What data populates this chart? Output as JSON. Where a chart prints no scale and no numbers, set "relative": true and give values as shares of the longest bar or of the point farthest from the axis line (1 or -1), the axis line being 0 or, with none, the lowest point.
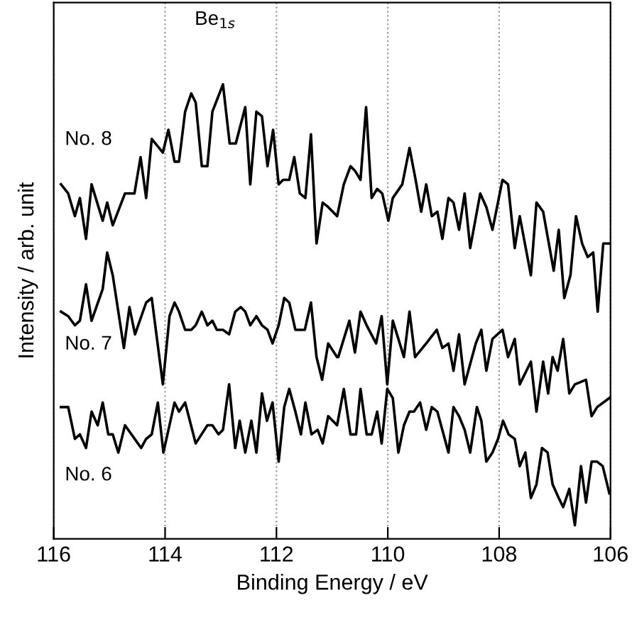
{
  "chart_data": {
    "type": "line",
    "xlabel": "Binding Energy / eV",
    "ylabel": "Intensity / arb. unit",
    "relative": true,
    "xlim": [
      116,
      106
    ],
    "xticks": [
      116,
      114,
      112,
      110,
      108,
      106
    ],
    "grid": "x",
    "legend": false,
    "marker": "none",
    "line_style": "solid",
    "annotations": [
      "Be$_{1s}$"
    ],
    "series": [
      {
        "name": "No. 8",
        "color": "#000000",
        "x": [
          115.87,
          115.74,
          115.62,
          115.53,
          115.42,
          115.32,
          115.12,
          115.04,
          114.94,
          114.72,
          114.55,
          114.44,
          114.34,
          114.24,
          114.04,
          113.94,
          113.83,
          113.75,
          113.64,
          113.53,
          113.45,
          113.34,
          113.24,
          113.15,
          112.96,
          112.84,
          112.73,
          112.56,
          112.47,
          112.36,
          112.26,
          112.16,
          112.06,
          111.96,
          111.88,
          111.77,
          111.68,
          111.58,
          111.48,
          111.38,
          111.28,
          111.17,
          111.07,
          110.91,
          110.79,
          110.67,
          110.59,
          110.49,
          110.39,
          110.29,
          110.19,
          110.1,
          109.99,
          109.91,
          109.74,
          109.61,
          109.5,
          109.4,
          109.31,
          109.21,
          109.11,
          109.02,
          108.91,
          108.82,
          108.72,
          108.62,
          108.52,
          108.34,
          108.23,
          108.12,
          107.94,
          107.84,
          107.72,
          107.63,
          107.43,
          107.33,
          107.21,
          107.02,
          106.93,
          106.83,
          106.72,
          106.62,
          106.51,
          106.41,
          106.31,
          106.23,
          106.13,
          106.02
        ],
        "values": [
          0.78,
          0.76,
          0.71,
          0.75,
          0.66,
          0.78,
          0.7,
          0.74,
          0.69,
          0.76,
          0.76,
          0.84,
          0.75,
          0.88,
          0.85,
          0.9,
          0.83,
          0.83,
          0.94,
          0.98,
          0.96,
          0.82,
          0.82,
          0.94,
          1.0,
          0.87,
          0.87,
          0.95,
          0.78,
          0.94,
          0.93,
          0.82,
          0.9,
          0.78,
          0.79,
          0.79,
          0.84,
          0.76,
          0.75,
          0.89,
          0.65,
          0.74,
          0.73,
          0.71,
          0.78,
          0.82,
          0.81,
          0.79,
          0.95,
          0.75,
          0.77,
          0.76,
          0.7,
          0.75,
          0.78,
          0.86,
          0.79,
          0.72,
          0.78,
          0.71,
          0.72,
          0.66,
          0.75,
          0.74,
          0.68,
          0.76,
          0.64,
          0.76,
          0.73,
          0.68,
          0.79,
          0.78,
          0.64,
          0.71,
          0.58,
          0.74,
          0.72,
          0.59,
          0.68,
          0.53,
          0.58,
          0.71,
          0.65,
          0.62,
          0.63,
          0.5,
          0.65,
          0.65
        ]
      },
      {
        "name": "No. 7",
        "color": "#000000",
        "x": [
          115.87,
          115.74,
          115.62,
          115.53,
          115.42,
          115.32,
          115.12,
          115.04,
          114.94,
          114.74,
          114.64,
          114.54,
          114.34,
          114.24,
          114.04,
          113.92,
          113.83,
          113.75,
          113.64,
          113.53,
          113.45,
          113.34,
          113.24,
          113.15,
          113.07,
          112.96,
          112.85,
          112.74,
          112.64,
          112.56,
          112.47,
          112.36,
          112.26,
          112.16,
          112.07,
          111.96,
          111.86,
          111.77,
          111.66,
          111.49,
          111.38,
          111.28,
          111.18,
          111.07,
          110.91,
          110.89,
          110.69,
          110.59,
          110.49,
          110.38,
          110.21,
          110.11,
          110.01,
          109.91,
          109.71,
          109.61,
          109.51,
          109.31,
          109.12,
          109.02,
          108.91,
          108.82,
          108.72,
          108.62,
          108.42,
          108.32,
          108.23,
          108.12,
          107.94,
          107.84,
          107.72,
          107.63,
          107.43,
          107.33,
          107.21,
          107.12,
          107.04,
          106.95,
          106.85,
          106.74,
          106.64,
          106.44,
          106.34,
          106.24,
          106.02
        ],
        "values": [
          0.5,
          0.49,
          0.47,
          0.48,
          0.56,
          0.48,
          0.55,
          0.63,
          0.58,
          0.42,
          0.51,
          0.45,
          0.52,
          0.53,
          0.34,
          0.49,
          0.52,
          0.5,
          0.46,
          0.46,
          0.47,
          0.5,
          0.47,
          0.48,
          0.46,
          0.46,
          0.45,
          0.5,
          0.51,
          0.5,
          0.47,
          0.49,
          0.47,
          0.46,
          0.43,
          0.47,
          0.53,
          0.52,
          0.46,
          0.46,
          0.52,
          0.4,
          0.35,
          0.43,
          0.4,
          0.4,
          0.48,
          0.41,
          0.5,
          0.47,
          0.43,
          0.49,
          0.34,
          0.48,
          0.4,
          0.5,
          0.4,
          0.43,
          0.46,
          0.42,
          0.43,
          0.37,
          0.45,
          0.34,
          0.43,
          0.46,
          0.37,
          0.44,
          0.46,
          0.4,
          0.44,
          0.34,
          0.39,
          0.28,
          0.39,
          0.32,
          0.4,
          0.37,
          0.44,
          0.32,
          0.34,
          0.35,
          0.27,
          0.29,
          0.31
        ]
      },
      {
        "name": "No. 6",
        "color": "#000000",
        "x": [
          115.87,
          115.74,
          115.62,
          115.53,
          115.42,
          115.32,
          115.21,
          115.12,
          115.02,
          114.94,
          114.84,
          114.72,
          114.43,
          114.34,
          114.24,
          114.13,
          114.03,
          113.83,
          113.75,
          113.64,
          113.45,
          113.24,
          113.15,
          113.04,
          112.96,
          112.85,
          112.74,
          112.66,
          112.56,
          112.45,
          112.36,
          112.26,
          112.17,
          112.07,
          111.96,
          111.86,
          111.77,
          111.66,
          111.56,
          111.48,
          111.37,
          111.26,
          111.17,
          111.07,
          110.91,
          110.79,
          110.67,
          110.57,
          110.49,
          110.38,
          110.29,
          110.19,
          110.11,
          110.01,
          109.91,
          109.81,
          109.71,
          109.61,
          109.53,
          109.42,
          109.31,
          109.21,
          109.11,
          108.91,
          108.82,
          108.72,
          108.62,
          108.52,
          108.4,
          108.32,
          108.23,
          108.12,
          108.02,
          107.93,
          107.83,
          107.72,
          107.63,
          107.53,
          107.43,
          107.33,
          107.23,
          107.13,
          107.04,
          106.93,
          106.85,
          106.74,
          106.64,
          106.53,
          106.44,
          106.34,
          106.24,
          106.14,
          106.02
        ],
        "values": [
          0.29,
          0.29,
          0.22,
          0.23,
          0.2,
          0.28,
          0.25,
          0.3,
          0.23,
          0.23,
          0.19,
          0.25,
          0.2,
          0.22,
          0.23,
          0.3,
          0.19,
          0.3,
          0.28,
          0.3,
          0.21,
          0.25,
          0.25,
          0.23,
          0.24,
          0.34,
          0.2,
          0.26,
          0.19,
          0.26,
          0.19,
          0.32,
          0.26,
          0.3,
          0.17,
          0.29,
          0.33,
          0.28,
          0.23,
          0.3,
          0.23,
          0.24,
          0.21,
          0.27,
          0.25,
          0.33,
          0.23,
          0.23,
          0.33,
          0.23,
          0.23,
          0.28,
          0.21,
          0.33,
          0.31,
          0.19,
          0.25,
          0.28,
          0.28,
          0.3,
          0.24,
          0.29,
          0.28,
          0.19,
          0.29,
          0.27,
          0.24,
          0.19,
          0.29,
          0.26,
          0.17,
          0.19,
          0.22,
          0.26,
          0.23,
          0.22,
          0.16,
          0.19,
          0.09,
          0.12,
          0.2,
          0.19,
          0.12,
          0.09,
          0.07,
          0.11,
          0.03,
          0.16,
          0.08,
          0.17,
          0.17,
          0.16,
          0.1
        ]
      }
    ]
  }
}
